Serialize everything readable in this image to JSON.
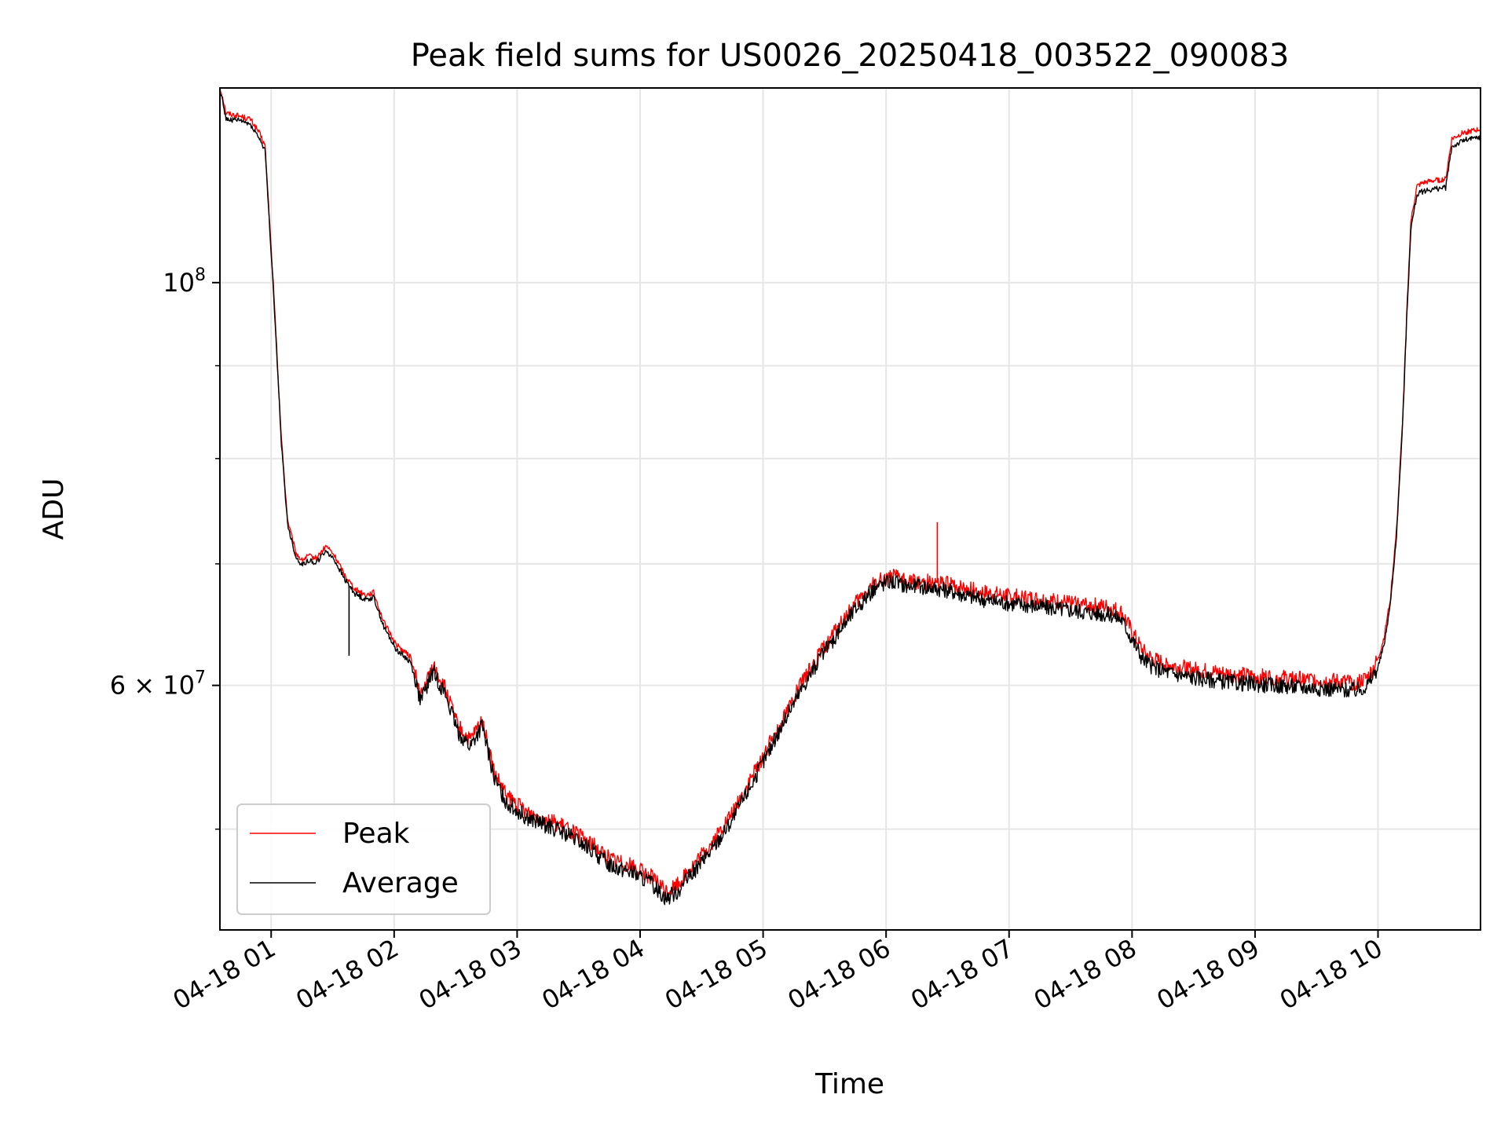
{
  "chart_data": {
    "type": "line",
    "title": "Peak field sums for US0026_20250418_003522_090083",
    "xlabel": "Time",
    "ylabel": "ADU",
    "xscale": "time",
    "yscale": "log",
    "grid": true,
    "legend_location": "lower-left",
    "xlim": [
      "2025-04-18 00:35",
      "2025-04-18 10:50"
    ],
    "ylim": [
      44000000,
      128000000
    ],
    "x_ticks": [
      "2025-04-18 01:00",
      "2025-04-18 02:00",
      "2025-04-18 03:00",
      "2025-04-18 04:00",
      "2025-04-18 05:00",
      "2025-04-18 06:00",
      "2025-04-18 07:00",
      "2025-04-18 08:00",
      "2025-04-18 09:00",
      "2025-04-18 10:00"
    ],
    "x_tick_labels": [
      "04-18 01",
      "04-18 02",
      "04-18 03",
      "04-18 04",
      "04-18 05",
      "04-18 06",
      "04-18 07",
      "04-18 08",
      "04-18 09",
      "04-18 10"
    ],
    "y_ticks": [
      {
        "value": 100000000,
        "label_base": "10",
        "label_exp": "8"
      },
      {
        "value": 60000000,
        "label_base": "6 × 10",
        "label_exp": "7"
      }
    ],
    "y_minor_ticks": [
      50000000,
      70000000,
      80000000,
      90000000
    ],
    "series": [
      {
        "name": "Peak",
        "color": "#ff0000",
        "x": [
          "2025-04-18 00:35",
          "2025-04-18 00:36",
          "2025-04-18 00:38",
          "2025-04-18 00:45",
          "2025-04-18 00:50",
          "2025-04-18 00:54",
          "2025-04-18 00:57",
          "2025-04-18 01:01",
          "2025-04-18 01:05",
          "2025-04-18 01:08",
          "2025-04-18 01:12",
          "2025-04-18 01:15",
          "2025-04-18 01:18",
          "2025-04-18 01:22",
          "2025-04-18 01:27",
          "2025-04-18 01:31",
          "2025-04-18 01:36",
          "2025-04-18 01:38",
          "2025-04-18 01:41",
          "2025-04-18 01:46",
          "2025-04-18 01:50",
          "2025-04-18 01:55",
          "2025-04-18 02:01",
          "2025-04-18 02:08",
          "2025-04-18 02:13",
          "2025-04-18 02:19",
          "2025-04-18 02:25",
          "2025-04-18 02:31",
          "2025-04-18 02:37",
          "2025-04-18 02:43",
          "2025-04-18 02:49",
          "2025-04-18 02:55",
          "2025-04-18 03:05",
          "2025-04-18 03:15",
          "2025-04-18 03:25",
          "2025-04-18 03:35",
          "2025-04-18 03:45",
          "2025-04-18 03:55",
          "2025-04-18 04:05",
          "2025-04-18 04:13",
          "2025-04-18 04:18",
          "2025-04-18 04:25",
          "2025-04-18 04:35",
          "2025-04-18 04:45",
          "2025-04-18 04:55",
          "2025-04-18 05:05",
          "2025-04-18 05:15",
          "2025-04-18 05:25",
          "2025-04-18 05:35",
          "2025-04-18 05:45",
          "2025-04-18 05:55",
          "2025-04-18 06:02",
          "2025-04-18 06:10",
          "2025-04-18 06:20",
          "2025-04-18 06:30",
          "2025-04-18 06:40",
          "2025-04-18 06:50",
          "2025-04-18 07:00",
          "2025-04-18 07:10",
          "2025-04-18 07:20",
          "2025-04-18 07:30",
          "2025-04-18 07:40",
          "2025-04-18 07:50",
          "2025-04-18 07:55",
          "2025-04-18 08:00",
          "2025-04-18 08:05",
          "2025-04-18 08:10",
          "2025-04-18 08:20",
          "2025-04-18 08:30",
          "2025-04-18 08:40",
          "2025-04-18 08:50",
          "2025-04-18 09:00",
          "2025-04-18 09:10",
          "2025-04-18 09:20",
          "2025-04-18 09:30",
          "2025-04-18 09:40",
          "2025-04-18 09:50",
          "2025-04-18 09:55",
          "2025-04-18 10:00",
          "2025-04-18 10:03",
          "2025-04-18 10:06",
          "2025-04-18 10:09",
          "2025-04-18 10:12",
          "2025-04-18 10:14",
          "2025-04-18 10:16",
          "2025-04-18 10:19",
          "2025-04-18 10:22",
          "2025-04-18 10:27",
          "2025-04-18 10:33",
          "2025-04-18 10:36",
          "2025-04-18 10:39",
          "2025-04-18 10:42",
          "2025-04-18 10:46",
          "2025-04-18 10:50"
        ],
        "y": [
          128000000,
          127000000,
          124000000,
          123500000,
          123000000,
          121000000,
          119000000,
          100000000,
          82000000,
          74000000,
          71000000,
          70300000,
          70700000,
          70500000,
          71600000,
          70700000,
          69000000,
          68500000,
          67800000,
          67300000,
          67500000,
          65000000,
          63200000,
          62200000,
          59200000,
          61500000,
          59700000,
          57000000,
          55900000,
          57400000,
          53600000,
          52100000,
          51100000,
          50600000,
          50000000,
          49200000,
          48200000,
          47800000,
          47100000,
          46200000,
          46600000,
          47600000,
          49100000,
          51000000,
          53500000,
          56200000,
          59100000,
          61800000,
          64200000,
          66500000,
          68400000,
          68900000,
          68500000,
          68400000,
          68200000,
          67800000,
          67400000,
          67200000,
          67000000,
          66800000,
          66600000,
          66400000,
          66200000,
          65800000,
          64200000,
          62700000,
          62000000,
          61500000,
          61200000,
          61000000,
          60800000,
          60700000,
          60600000,
          60500000,
          60400000,
          60300000,
          60200000,
          60600000,
          62000000,
          63800000,
          67000000,
          73000000,
          84000000,
          96000000,
          108000000,
          113000000,
          113500000,
          113800000,
          114000000,
          120000000,
          120500000,
          121000000,
          121200000,
          121500000
        ]
      },
      {
        "name": "Average",
        "color": "#000000",
        "x": [
          "2025-04-18 00:35",
          "2025-04-18 00:36",
          "2025-04-18 00:38",
          "2025-04-18 00:45",
          "2025-04-18 00:50",
          "2025-04-18 00:54",
          "2025-04-18 00:57",
          "2025-04-18 01:01",
          "2025-04-18 01:05",
          "2025-04-18 01:08",
          "2025-04-18 01:12",
          "2025-04-18 01:15",
          "2025-04-18 01:18",
          "2025-04-18 01:22",
          "2025-04-18 01:27",
          "2025-04-18 01:31",
          "2025-04-18 01:36",
          "2025-04-18 01:38",
          "2025-04-18 01:41",
          "2025-04-18 01:46",
          "2025-04-18 01:50",
          "2025-04-18 01:55",
          "2025-04-18 02:01",
          "2025-04-18 02:08",
          "2025-04-18 02:13",
          "2025-04-18 02:19",
          "2025-04-18 02:25",
          "2025-04-18 02:31",
          "2025-04-18 02:37",
          "2025-04-18 02:43",
          "2025-04-18 02:49",
          "2025-04-18 02:55",
          "2025-04-18 03:05",
          "2025-04-18 03:15",
          "2025-04-18 03:25",
          "2025-04-18 03:35",
          "2025-04-18 03:45",
          "2025-04-18 03:55",
          "2025-04-18 04:05",
          "2025-04-18 04:13",
          "2025-04-18 04:18",
          "2025-04-18 04:25",
          "2025-04-18 04:35",
          "2025-04-18 04:45",
          "2025-04-18 04:55",
          "2025-04-18 05:05",
          "2025-04-18 05:15",
          "2025-04-18 05:25",
          "2025-04-18 05:35",
          "2025-04-18 05:45",
          "2025-04-18 05:55",
          "2025-04-18 06:02",
          "2025-04-18 06:10",
          "2025-04-18 06:20",
          "2025-04-18 06:30",
          "2025-04-18 06:40",
          "2025-04-18 06:50",
          "2025-04-18 07:00",
          "2025-04-18 07:10",
          "2025-04-18 07:20",
          "2025-04-18 07:30",
          "2025-04-18 07:40",
          "2025-04-18 07:50",
          "2025-04-18 07:55",
          "2025-04-18 08:00",
          "2025-04-18 08:05",
          "2025-04-18 08:10",
          "2025-04-18 08:20",
          "2025-04-18 08:30",
          "2025-04-18 08:40",
          "2025-04-18 08:50",
          "2025-04-18 09:00",
          "2025-04-18 09:10",
          "2025-04-18 09:20",
          "2025-04-18 09:30",
          "2025-04-18 09:40",
          "2025-04-18 09:50",
          "2025-04-18 09:55",
          "2025-04-18 10:00",
          "2025-04-18 10:03",
          "2025-04-18 10:06",
          "2025-04-18 10:09",
          "2025-04-18 10:12",
          "2025-04-18 10:14",
          "2025-04-18 10:16",
          "2025-04-18 10:19",
          "2025-04-18 10:22",
          "2025-04-18 10:27",
          "2025-04-18 10:33",
          "2025-04-18 10:36",
          "2025-04-18 10:39",
          "2025-04-18 10:42",
          "2025-04-18 10:46",
          "2025-04-18 10:50"
        ],
        "y": [
          127500000,
          126500000,
          123000000,
          122800000,
          122200000,
          120200000,
          118300000,
          99500000,
          81500000,
          73600000,
          70600000,
          69900000,
          70300000,
          70100000,
          71200000,
          70300000,
          68600000,
          68100000,
          67400000,
          66900000,
          67100000,
          64600000,
          62800000,
          61800000,
          58800000,
          61100000,
          59300000,
          56600000,
          55500000,
          57000000,
          53200000,
          51700000,
          50700000,
          50200000,
          49600000,
          48800000,
          47800000,
          47400000,
          46700000,
          45800000,
          46200000,
          47200000,
          48700000,
          50600000,
          53100000,
          55800000,
          58700000,
          61400000,
          63800000,
          66100000,
          68000000,
          68500000,
          68100000,
          68000000,
          67700000,
          67200000,
          66800000,
          66600000,
          66400000,
          66200000,
          66000000,
          65800000,
          65600000,
          65200000,
          63600000,
          62100000,
          61400000,
          60900000,
          60600000,
          60400000,
          60200000,
          60100000,
          60000000,
          59900000,
          59800000,
          59700000,
          59600000,
          60000000,
          61400000,
          63200000,
          66500000,
          72500000,
          83500000,
          95500000,
          107000000,
          111800000,
          112300000,
          112600000,
          112800000,
          118800000,
          119300000,
          119800000,
          120000000,
          120300000
        ]
      }
    ],
    "annotations": [
      {
        "series": "Peak",
        "x": "2025-04-18 06:25",
        "y": 73800000,
        "note": "spike"
      },
      {
        "series": "Average",
        "x": "2025-04-18 01:38",
        "y": 62300000,
        "note": "dip"
      }
    ]
  }
}
